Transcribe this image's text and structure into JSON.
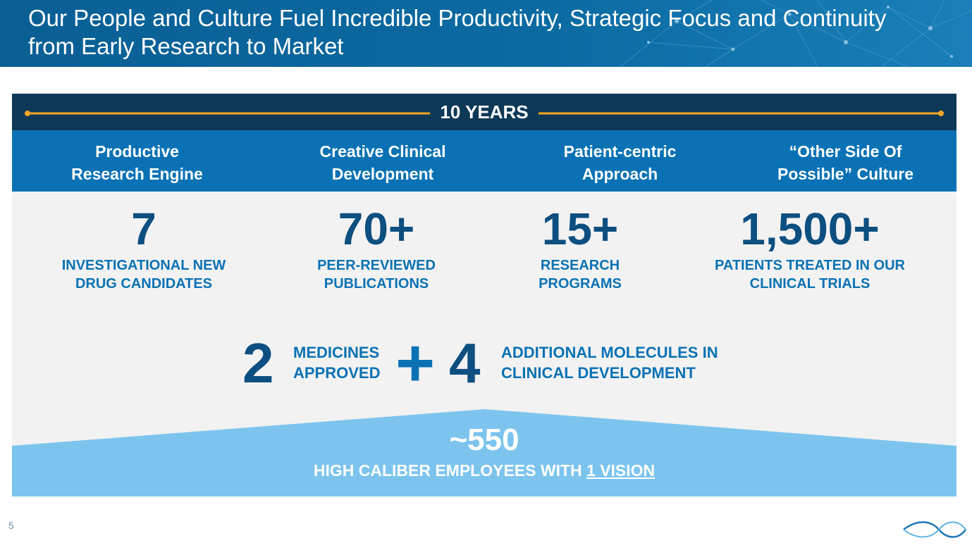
{
  "header": {
    "title": "Our People and Culture Fuel Incredible Productivity, Strategic Focus and Continuity from Early Research to Market"
  },
  "timeline": {
    "label": "10 YEARS"
  },
  "pillars": [
    {
      "line1": "Productive",
      "line2": "Research Engine"
    },
    {
      "line1": "Creative Clinical",
      "line2": "Development"
    },
    {
      "line1": "Patient-centric",
      "line2": "Approach"
    },
    {
      "line1": "“Other Side Of",
      "line2": "Possible” Culture"
    }
  ],
  "stats": [
    {
      "value": "7",
      "line1": "INVESTIGATIONAL NEW",
      "line2": "DRUG CANDIDATES"
    },
    {
      "value": "70+",
      "line1": "PEER-REVIEWED",
      "line2": "PUBLICATIONS"
    },
    {
      "value": "15+",
      "line1": "RESEARCH",
      "line2": "PROGRAMS"
    },
    {
      "value": "1,500+",
      "line1": "PATIENTS TREATED IN OUR",
      "line2": "CLINICAL TRIALS"
    }
  ],
  "pipeline": {
    "approved_count": "2",
    "approved_line1": "MEDICINES",
    "approved_line2": "APPROVED",
    "plus": "+",
    "clinical_count": "4",
    "clinical_line1": "ADDITIONAL MOLECULES IN",
    "clinical_line2": "CLINICAL DEVELOPMENT"
  },
  "employees": {
    "count": "~550",
    "label_prefix": "HIGH CALIBER EMPLOYEES WITH ",
    "label_link": "1 VISION"
  },
  "footer": {
    "page_number": "5"
  },
  "colors": {
    "header_blue": "#0b6aa2",
    "dark_navy": "#0d3957",
    "pillar_blue": "#0a72b4",
    "number_navy": "#0d4f80",
    "light_blue": "#7cc4ee",
    "panel_gray": "#f2f2f2",
    "timeline_orange": "#f5a623"
  },
  "icons": [
    "network-background-graphic",
    "company-logo-icon"
  ]
}
